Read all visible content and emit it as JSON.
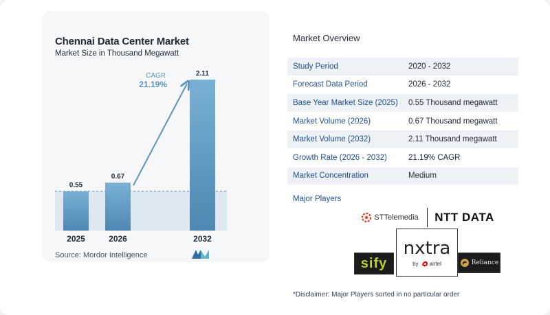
{
  "chart_data": {
    "type": "bar",
    "title": "Chennai Data Center Market",
    "subtitle": "Market Size in Thousand Megawatt",
    "categories": [
      "2025",
      "2026",
      "2032"
    ],
    "values": [
      0.55,
      0.67,
      2.11
    ],
    "value_labels": [
      "0.55",
      "0.67",
      "2.11"
    ],
    "cagr_label": "CAGR",
    "cagr_value": "21.19%",
    "grid": false,
    "colors": {
      "bar": "#5b93bb",
      "bar_light": "#7ab0d4",
      "band": "#dde8f2",
      "arrow": "#5b93bb",
      "cagr": "#5b93bb"
    }
  },
  "source": "Source:  Mordor Intelligence",
  "overview": {
    "title": "Market Overview",
    "rows": [
      {
        "label": "Study Period",
        "value": "2020 - 2032"
      },
      {
        "label": "Forecast Data Period",
        "value": "2026 - 2032"
      },
      {
        "label": "Base Year Market Size (2025)",
        "value": "0.55 Thousand megawatt"
      },
      {
        "label": "Market Volume (2026)",
        "value": "0.67 Thousand megawatt"
      },
      {
        "label": "Market Volume (2032)",
        "value": "2.11 Thousand megawatt"
      },
      {
        "label": "Growth Rate (2026 - 2032)",
        "value": "21.19% CAGR"
      },
      {
        "label": "Market Concentration",
        "value": "Medium"
      }
    ],
    "players_label": "Major Players",
    "players": {
      "st_telemedia": "STTelemedia",
      "ntt_data": "NTT DATA",
      "nxtra": "nxtra",
      "nxtra_by": "by",
      "nxtra_airtel": "airtel",
      "sify": "sify",
      "reliance": "Reliance"
    }
  },
  "disclaimer": "*Disclaimer: Major Players sorted in no particular order"
}
